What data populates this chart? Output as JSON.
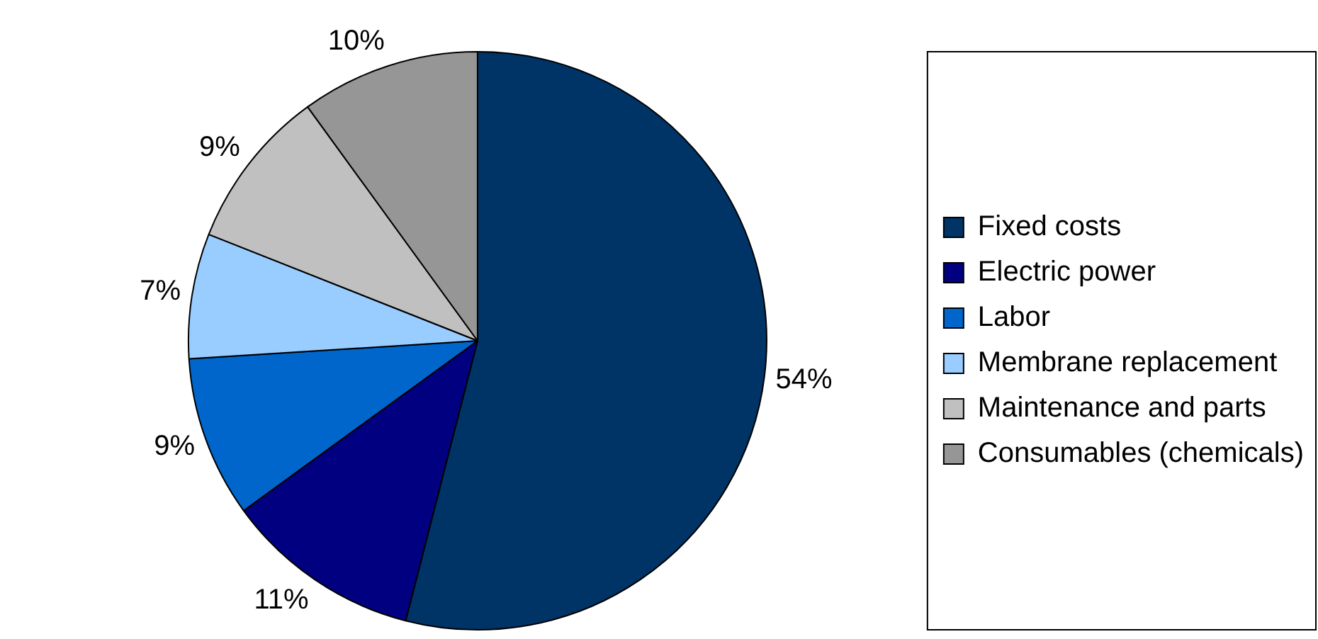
{
  "chart_data": {
    "type": "pie",
    "categories": [
      "Fixed costs",
      "Electric power",
      "Labor",
      "Membrane replacement",
      "Maintenance and parts",
      "Consumables (chemicals)"
    ],
    "values": [
      54,
      11,
      9,
      7,
      9,
      10
    ],
    "value_labels": [
      "54%",
      "11%",
      "9%",
      "7%",
      "9%",
      "10%"
    ],
    "colors": [
      "#003366",
      "#000080",
      "#0066cc",
      "#99ccff",
      "#c0c0c0",
      "#969696"
    ],
    "legend": "right"
  }
}
